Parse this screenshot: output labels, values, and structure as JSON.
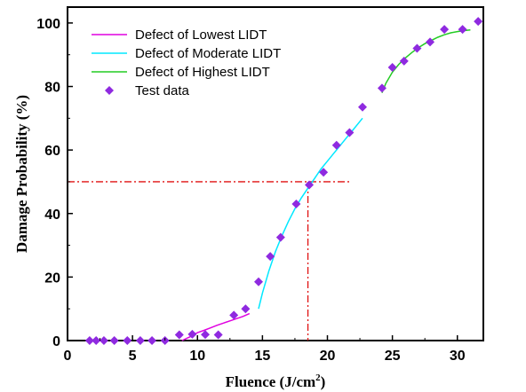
{
  "chart_data": {
    "type": "scatter",
    "xlabel_main": "Fluence (J/cm",
    "xlabel_sup": "2",
    "xlabel_end": ")",
    "ylabel": "Damage Probability (%)",
    "xlim": [
      0,
      32
    ],
    "ylim": [
      0,
      105
    ],
    "xticks": [
      "0",
      "5",
      "10",
      "15",
      "20",
      "25",
      "30"
    ],
    "yticks": [
      "0",
      "20",
      "40",
      "60",
      "80",
      "100"
    ],
    "legend_position": "top-left",
    "colors": {
      "lowest": "#e000e0",
      "moderate": "#00e8ff",
      "highest": "#22cc22",
      "points": "#8f2ae0",
      "reference": "#e01010"
    },
    "series": [
      {
        "name": "Defect of Lowest LIDT",
        "type": "line",
        "x": [
          8.8,
          9.5,
          10.0,
          10.5,
          11.0,
          11.5,
          12.0,
          12.5,
          13.0,
          13.5,
          14.0
        ],
        "y": [
          0,
          1.3,
          2.5,
          3.2,
          4.0,
          4.8,
          5.5,
          6.2,
          6.9,
          7.6,
          8.5
        ]
      },
      {
        "name": "Defect of Moderate LIDT",
        "type": "line",
        "x": [
          14.7,
          15.0,
          15.5,
          16.0,
          16.5,
          17.0,
          17.5,
          18.0,
          18.5,
          19.0,
          19.5,
          20.0,
          20.5,
          21.0,
          21.5,
          22.0,
          22.7
        ],
        "y": [
          10,
          15,
          22,
          28,
          33,
          37.5,
          41.5,
          45,
          48,
          51,
          54,
          56.5,
          59,
          61.5,
          64,
          66.5,
          70
        ]
      },
      {
        "name": "Defect of Highest LIDT",
        "type": "line",
        "x": [
          24.2,
          24.5,
          25.0,
          25.5,
          26.0,
          26.5,
          27.0,
          27.5,
          28.0,
          28.5,
          29.0,
          29.5,
          30.0,
          30.5,
          31.0
        ],
        "y": [
          78,
          81,
          84.5,
          87,
          89,
          90.7,
          92.2,
          93.5,
          94.5,
          95.5,
          96.3,
          96.9,
          97.3,
          97.6,
          97.8
        ]
      },
      {
        "name": "Test data",
        "type": "scatter",
        "x": [
          1.7,
          2.2,
          2.8,
          3.6,
          4.6,
          5.6,
          6.5,
          7.5,
          8.6,
          9.6,
          10.6,
          11.6,
          12.8,
          13.7,
          14.7,
          15.6,
          16.4,
          17.6,
          18.6,
          19.7,
          20.7,
          21.7,
          22.7,
          24.2,
          25.0,
          25.9,
          26.9,
          27.9,
          29.0,
          30.4,
          31.6
        ],
        "y": [
          0,
          0,
          0,
          0,
          0,
          0,
          0,
          0,
          1.8,
          2.0,
          1.9,
          1.8,
          8.0,
          10.0,
          18.5,
          26.5,
          32.5,
          43,
          49,
          53,
          61.5,
          65.5,
          73.5,
          79.5,
          86,
          88,
          92,
          94,
          98,
          98,
          100.5
        ]
      }
    ],
    "reference_lines": {
      "y_value": 50,
      "x_value": 18.5,
      "h_x_end": 21.8
    }
  }
}
